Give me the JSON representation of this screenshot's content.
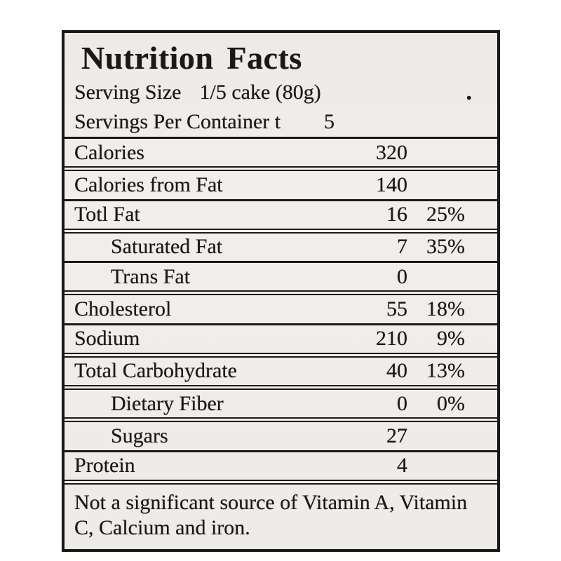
{
  "label": {
    "title": "Nutrition Facts",
    "serving_size_label": "Serving Size",
    "serving_size_value": "1/5 cake (80g)",
    "serving_size_mark": ".",
    "servings_label": "Servings Per Container t",
    "servings_value": "5",
    "nutrients": [
      {
        "name": "Calories",
        "amount": "320",
        "dv": "",
        "indent": false
      },
      {
        "name": "Calories from Fat",
        "amount": "140",
        "dv": "",
        "indent": false
      },
      {
        "name": "Totl Fat",
        "amount": "16",
        "dv": "25%",
        "indent": false
      },
      {
        "name": "Saturated Fat",
        "amount": "7",
        "dv": "35%",
        "indent": true
      },
      {
        "name": "Trans Fat",
        "amount": "0",
        "dv": "",
        "indent": true
      },
      {
        "name": "Cholesterol",
        "amount": "55",
        "dv": "18%",
        "indent": false
      },
      {
        "name": "Sodium",
        "amount": "210",
        "dv": "9%",
        "indent": false
      },
      {
        "name": "Total Carbohydrate",
        "amount": "40",
        "dv": "13%",
        "indent": false
      },
      {
        "name": "Dietary Fiber",
        "amount": "0",
        "dv": "0%",
        "indent": true
      },
      {
        "name": "Sugars",
        "amount": "27",
        "dv": "",
        "indent": true
      },
      {
        "name": "Protein",
        "amount": "4",
        "dv": "",
        "indent": false
      }
    ],
    "footnote": "Not a significant source of Vitamin A, Vitamin C, Calcium and iron.",
    "colors": {
      "paper": "#f1efec",
      "ink": "#1c1815"
    }
  }
}
